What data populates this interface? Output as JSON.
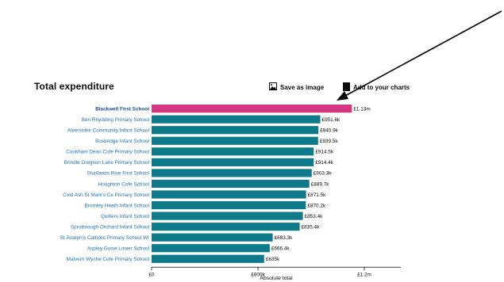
{
  "page": {
    "title": "Total expenditure",
    "save_label": "Save as image",
    "add_label": "Add to your charts"
  },
  "icons": {
    "save": "image-icon",
    "add": "document-plus-icon",
    "pointer": "arrow-annotation"
  },
  "colors": {
    "highlight_bar": "#d53880",
    "bar": "#0f7a8a",
    "link": "#1d70b8"
  },
  "chart_data": {
    "type": "bar",
    "orientation": "horizontal",
    "title": "Total expenditure",
    "xlabel": "Absolute total",
    "ylabel": "",
    "xlim": [
      0,
      1200000
    ],
    "x_ticks": [
      0,
      600000,
      1200000
    ],
    "x_tick_labels": [
      "£0",
      "£600k",
      "£1.2m"
    ],
    "highlight_index": 0,
    "categories": [
      "Blackwell First School",
      "Ben Rhydding Primary School",
      "Alverstoke Community Infant School",
      "Busbridge Infant School",
      "Cookham Dean Cofe Primary School",
      "Brindle Gregson Lane Primary School",
      "Studlands Rise First School",
      "Houghton Cofe School",
      "Cold Ash St Mark's Ce Primary School",
      "Bromley Heath Infant School",
      "Quilters Infant School",
      "Sprotbrough Orchard Infant School",
      "St Joseph's Catholic Primary School Wr",
      "Aspley Guise Lower School",
      "Malvern Wyche Cofe Primary School"
    ],
    "values": [
      1130000,
      951600,
      940900,
      939500,
      914500,
      914400,
      903300,
      889700,
      871500,
      870200,
      853400,
      835400,
      683300,
      666400,
      635000
    ],
    "value_labels": [
      "£1.13m",
      "£951.6k",
      "£940.9k",
      "£939.5k",
      "£914.5k",
      "£914.4k",
      "£903.3k",
      "£889.7k",
      "£871.5k",
      "£870.2k",
      "£853.4k",
      "£835.4k",
      "£683.3k",
      "£666.4k",
      "£635k"
    ]
  }
}
